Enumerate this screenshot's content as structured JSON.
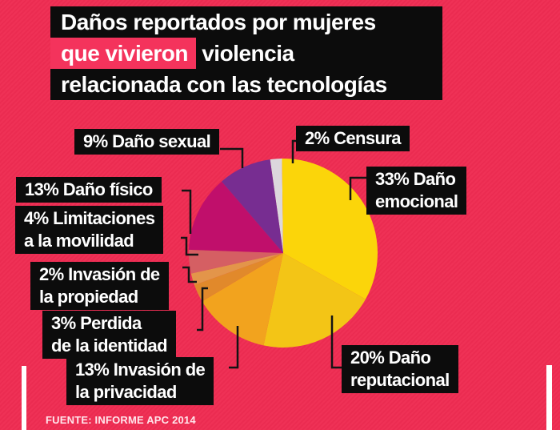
{
  "title": {
    "line1": "Daños reportados por mujeres",
    "line2_highlight": "que vivieron",
    "line2_rest": " violencia",
    "line3": "relacionada con las tecnologías"
  },
  "source": "FUENTE: INFORME APC 2014",
  "colors": {
    "background": "#EF2C52",
    "box_black": "#0c0c0c",
    "highlight_pink": "#F4335C",
    "text_white": "#FFFFFF",
    "callout_line": "#141414"
  },
  "chart_data": {
    "type": "pie",
    "title": "Daños reportados por mujeres que vivieron violencia relacionada con las tecnologías",
    "start_angle_deg": -8,
    "clockwise": true,
    "legend_position": "callout-labels",
    "slices": [
      {
        "label": "Censura",
        "value": 2,
        "color": "#DCD7DD",
        "callout_label": "2% Censura"
      },
      {
        "label": "Daño emocional",
        "value": 33,
        "color": "#FBD50A",
        "callout_label": "33% Daño\n   emocional"
      },
      {
        "label": "Daño reputacional",
        "value": 20,
        "color": "#F3C516",
        "callout_label": "20% Daño\nreputacional"
      },
      {
        "label": "Invasión de la privacidad",
        "value": 13,
        "color": "#F2A31E",
        "callout_label": "13% Invasión de\nla privacidad"
      },
      {
        "label": "Perdida de la identidad",
        "value": 3,
        "color": "#E1892B",
        "callout_label": "3% Perdida\nde la identidad"
      },
      {
        "label": "Invasión de la propiedad",
        "value": 2,
        "color": "#E3954A",
        "callout_label": "2% Invasión de\nla propiedad"
      },
      {
        "label": "Limitaciones a la movilidad",
        "value": 4,
        "color": "#D55F63",
        "callout_label": "4% Limitaciones\na la movilidad"
      },
      {
        "label": "Daño físico",
        "value": 13,
        "color": "#C00F6B",
        "callout_label": "13% Daño físico"
      },
      {
        "label": "Daño sexual",
        "value": 9,
        "color": "#772D91",
        "callout_label": "9% Daño sexual"
      }
    ]
  }
}
